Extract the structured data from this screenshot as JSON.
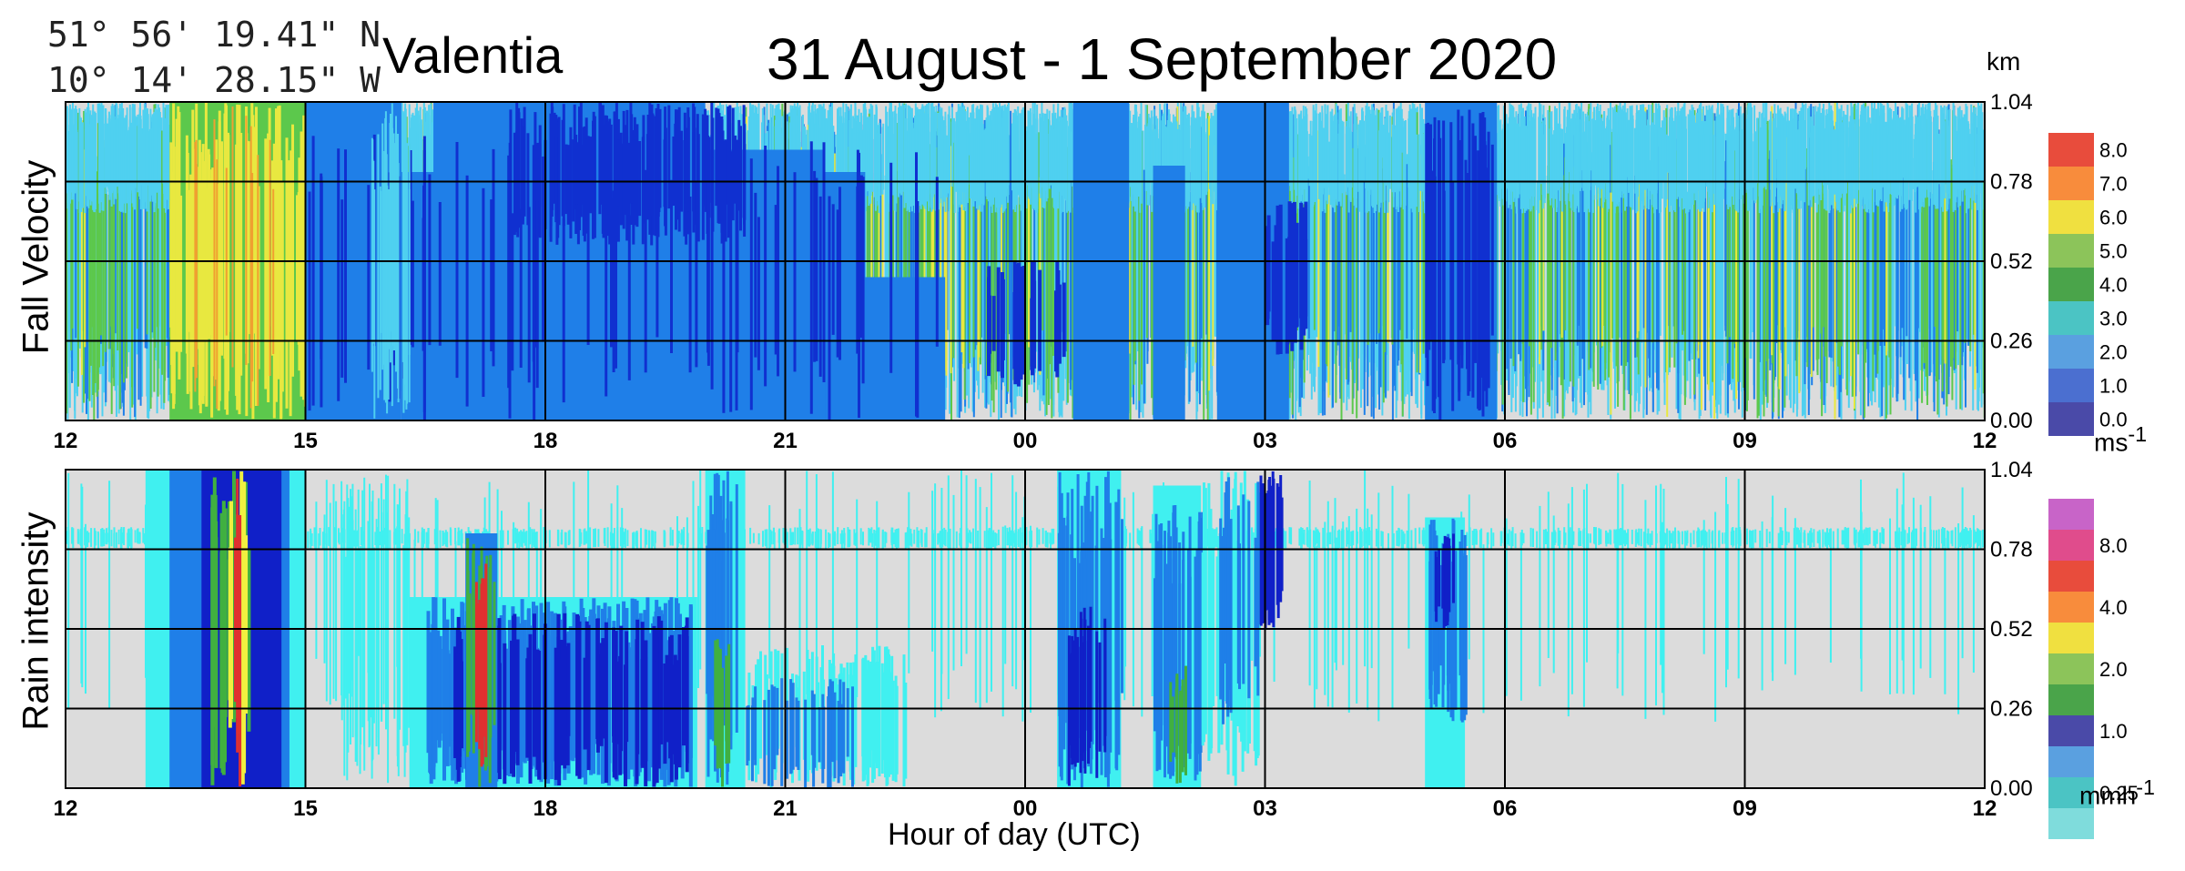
{
  "header": {
    "latitude": "51° 56' 19.41\" N",
    "longitude": "10° 14' 28.15\" W",
    "station": "Valentia",
    "title": "31 August - 1 September 2020",
    "height_unit": "km"
  },
  "chart_data": [
    {
      "type": "heatmap",
      "panel": "Fall Velocity",
      "ylabel": "Fall Velocity",
      "xlabel": "Hour of day (UTC)",
      "x_ticks": [
        "12",
        "15",
        "18",
        "21",
        "00",
        "03",
        "06",
        "09",
        "12"
      ],
      "y_ticks": [
        "0.00",
        "0.26",
        "0.52",
        "0.78",
        "1.04"
      ],
      "ylim": [
        0.0,
        1.04
      ],
      "xlim_hours_from_start": [
        0,
        24
      ],
      "colorbar": {
        "unit": "ms",
        "unit_exponent": "-1",
        "labels": [
          "0.0",
          "1.0",
          "2.0",
          "3.0",
          "4.0",
          "5.0",
          "6.0",
          "7.0",
          "8.0"
        ],
        "colors": [
          "#4a4aa8",
          "#4b6fd0",
          "#5aa0e0",
          "#4bc4c4",
          "#4aa44a",
          "#8cc45a",
          "#f0e040",
          "#f88c3c",
          "#e84c3c"
        ]
      },
      "background_color": "#dcdcdc",
      "grid": true
    },
    {
      "type": "heatmap",
      "panel": "Rain intensity",
      "ylabel": "Rain intensity",
      "xlabel": "Hour of day (UTC)",
      "x_ticks": [
        "12",
        "15",
        "18",
        "21",
        "00",
        "03",
        "06",
        "09",
        "12"
      ],
      "y_ticks": [
        "0.00",
        "0.26",
        "0.52",
        "0.78",
        "1.04"
      ],
      "ylim": [
        0.0,
        1.04
      ],
      "xlim_hours_from_start": [
        0,
        24
      ],
      "colorbar": {
        "unit": "mmh",
        "unit_exponent": "-1",
        "labels": [
          "0.25",
          "1.0",
          "2.0",
          "4.0",
          "8.0"
        ],
        "colors": [
          "#7fdcdc",
          "#4bc4c4",
          "#5aa0e0",
          "#4a4aa8",
          "#4aa44a",
          "#8cc45a",
          "#f0e040",
          "#f88c3c",
          "#e84c3c",
          "#e04c8c",
          "#c864c8"
        ]
      },
      "background_color": "#dcdcdc",
      "grid": true
    }
  ],
  "palette": {
    "fv_base": "#1f7fe8",
    "fv_dark": "#1030d0",
    "fv_light": "#4fd0f0",
    "fv_green": "#5cc84c",
    "fv_yellow": "#e8e840",
    "ri_cyan": "#40f0f0",
    "ri_blue": "#1f7fe8",
    "ri_dark": "#1020c8",
    "ri_green": "#40b040",
    "ri_yellow": "#f0f040",
    "ri_red": "#e03030"
  }
}
